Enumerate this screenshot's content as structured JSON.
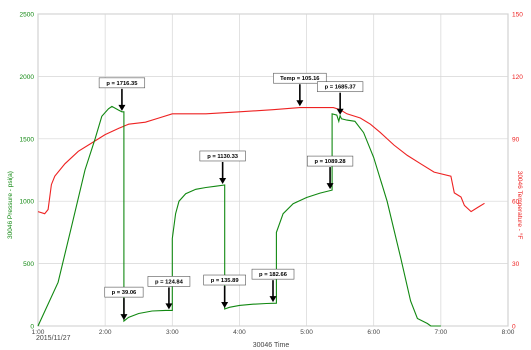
{
  "chart_data": {
    "type": "line",
    "title": "",
    "xlabel": "30046 Time",
    "ylabel_left": "30046 Pressure - psi(a)",
    "ylabel_right": "30046 Temperature - °F",
    "x_ticks": [
      "1:00",
      "2:00",
      "3:00",
      "4:00",
      "5:00",
      "6:00",
      "7:00",
      "8:00"
    ],
    "x_date_label": "2015/11/27",
    "y_left_ticks": [
      "0",
      "500",
      "1000",
      "1500",
      "2000",
      "2500"
    ],
    "y_right_ticks": [
      "0",
      "30",
      "60",
      "90",
      "120",
      "150"
    ],
    "xlim_hours": [
      1.0,
      8.0
    ],
    "ylim_left": [
      0,
      2500
    ],
    "ylim_right": [
      0,
      150
    ],
    "grid": true,
    "colors": {
      "pressure": "#118811",
      "temperature": "#ee2222",
      "left_axis": "#118811",
      "right_axis": "#ee2222",
      "grid": "#d6d6d6"
    },
    "series": [
      {
        "axis": "left",
        "x": [
          1.0,
          1.3,
          1.5,
          1.7,
          1.85,
          1.95,
          2.05,
          2.1,
          2.2,
          2.25,
          2.28,
          2.28,
          2.35,
          2.5,
          2.7,
          2.9,
          3.0,
          3.0,
          3.05,
          3.1,
          3.2,
          3.35,
          3.5,
          3.65,
          3.78,
          3.78,
          3.85,
          4.0,
          4.2,
          4.4,
          4.55,
          4.55,
          4.65,
          4.8,
          5.0,
          5.2,
          5.38,
          5.38,
          5.45,
          5.48,
          5.5,
          5.52,
          5.6,
          5.72,
          5.85,
          6.0,
          6.2,
          6.4,
          6.55,
          6.65,
          6.8,
          6.85,
          7.0
        ],
        "y": [
          0,
          350,
          800,
          1250,
          1500,
          1680,
          1740,
          1760,
          1730,
          1716,
          1716,
          39,
          70,
          100,
          120,
          125,
          125,
          700,
          900,
          1000,
          1060,
          1095,
          1110,
          1120,
          1130,
          136,
          150,
          165,
          175,
          180,
          183,
          750,
          900,
          980,
          1030,
          1065,
          1089,
          1700,
          1690,
          1640,
          1685,
          1660,
          1650,
          1640,
          1550,
          1350,
          1000,
          550,
          200,
          60,
          20,
          0,
          0
        ]
      },
      {
        "axis": "right",
        "x": [
          1.0,
          1.1,
          1.15,
          1.2,
          1.25,
          1.4,
          1.6,
          1.8,
          2.0,
          2.2,
          2.35,
          2.6,
          2.8,
          3.0,
          3.5,
          4.0,
          4.5,
          4.9,
          5.0,
          5.2,
          5.4,
          5.5,
          5.6,
          5.8,
          5.95,
          6.1,
          6.3,
          6.5,
          6.7,
          6.9,
          7.15,
          7.2,
          7.3,
          7.35,
          7.45,
          7.55,
          7.65
        ],
        "y": [
          55,
          54,
          56,
          68,
          72,
          78,
          84,
          88,
          92,
          95,
          97,
          98,
          100,
          102,
          102,
          103,
          104,
          105,
          105,
          105,
          105,
          104,
          102,
          100,
          97,
          93,
          87,
          82,
          78,
          74,
          72,
          64,
          62,
          58,
          55,
          57,
          59
        ]
      }
    ],
    "annotations": [
      {
        "label": "p = 1716.35",
        "x": 2.25,
        "y": 1716
      },
      {
        "label": "p = 39.06",
        "x": 2.28,
        "y": 39
      },
      {
        "label": "p = 124.84",
        "x": 2.95,
        "y": 125
      },
      {
        "label": "p = 1130.33",
        "x": 3.75,
        "y": 1130
      },
      {
        "label": "p = 135.89",
        "x": 3.78,
        "y": 136
      },
      {
        "label": "p = 182.66",
        "x": 4.5,
        "y": 183
      },
      {
        "label": "Temp = 105.16",
        "x": 4.9,
        "y": 1753
      },
      {
        "label": "p = 1685.37",
        "x": 5.5,
        "y": 1685
      },
      {
        "label": "p = 1089.28",
        "x": 5.35,
        "y": 1089
      }
    ]
  }
}
